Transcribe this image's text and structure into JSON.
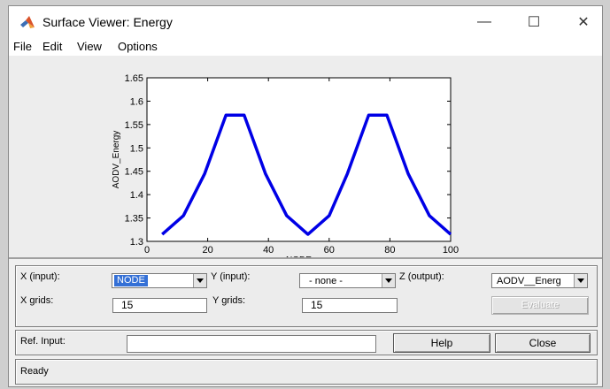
{
  "window": {
    "title": "Surface Viewer: Energy",
    "controls": {
      "minimize": "—",
      "maximize": "☐",
      "close": "✕"
    }
  },
  "menu": [
    "File",
    "Edit",
    "View",
    "Options"
  ],
  "chart_data": {
    "type": "line",
    "title": "",
    "xlabel": "NODE",
    "ylabel": "AODV_Energy",
    "xlim": [
      0,
      100
    ],
    "ylim": [
      1.3,
      1.65
    ],
    "xticks": [
      "0",
      "20",
      "40",
      "60",
      "80",
      "100"
    ],
    "yticks": [
      "1.3",
      "1.35",
      "1.4",
      "1.45",
      "1.5",
      "1.55",
      "1.6",
      "1.65"
    ],
    "color": "#0000e6",
    "series": [
      {
        "x": [
          5,
          12,
          19,
          26,
          32,
          39,
          46,
          53,
          60,
          66,
          73,
          79,
          86,
          93,
          100
        ],
        "values": [
          1.315,
          1.355,
          1.445,
          1.57,
          1.57,
          1.445,
          1.355,
          1.315,
          1.355,
          1.445,
          1.57,
          1.57,
          1.445,
          1.355,
          1.315
        ]
      }
    ]
  },
  "controls": {
    "x_input_label": "X (input):",
    "x_input_value": "NODE",
    "y_input_label": "Y (input):",
    "y_input_value": "- none -",
    "z_output_label": "Z (output):",
    "z_output_value": "AODV__Energ",
    "x_grids_label": "X grids:",
    "x_grids_value": "15",
    "y_grids_label": "Y grids:",
    "y_grids_value": "15",
    "evaluate_label": "Evaluate",
    "ref_input_label": "Ref. Input:",
    "ref_input_value": "",
    "help_label": "Help",
    "close_label": "Close"
  },
  "status": {
    "text": "Ready"
  }
}
